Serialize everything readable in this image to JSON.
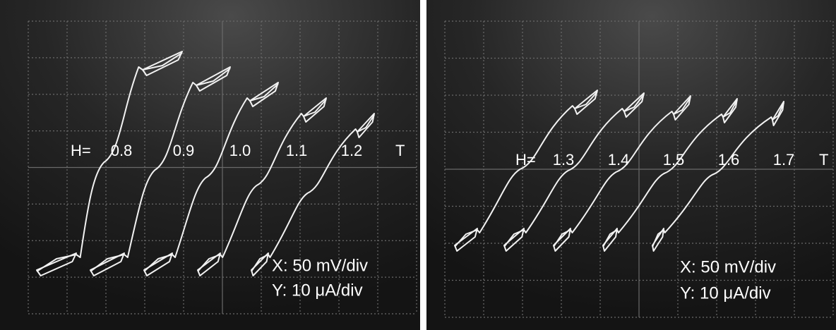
{
  "panels": [
    {
      "field_prefix": "H=",
      "fields": [
        "0.8",
        "0.9",
        "1.0",
        "1.1",
        "1.2"
      ],
      "unit": "T",
      "x_scale": "X: 50 mV/div",
      "y_scale": "Y: 10 μA/div"
    },
    {
      "field_prefix": "H=",
      "fields": [
        "1.3",
        "1.4",
        "1.5",
        "1.6",
        "1.7"
      ],
      "unit": "T",
      "x_scale": "X: 50 mV/div",
      "y_scale": "Y: 10 μA/div"
    }
  ]
}
